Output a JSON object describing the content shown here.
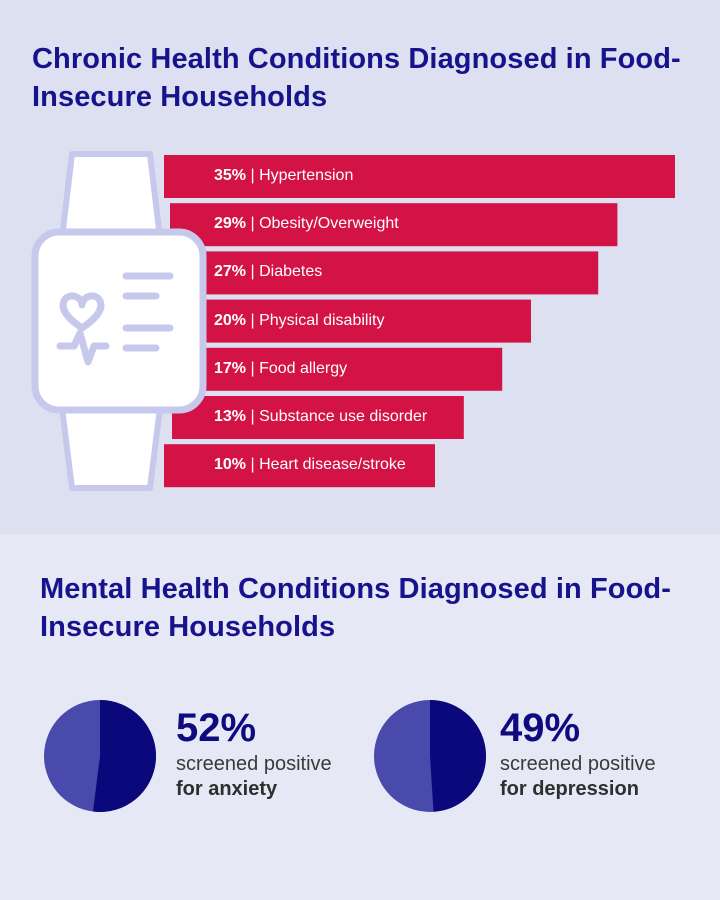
{
  "chronic": {
    "title": "Chronic Health Conditions Diagnosed in Food-Insecure Households"
  },
  "mental": {
    "title": "Mental Health Conditions Diagnosed in Food-Insecure Households"
  },
  "colors": {
    "bar": "#d31245",
    "title": "#17138c",
    "pie_dark": "#0b087c",
    "pie_light": "#4a4aad",
    "watch_outline": "#c6c9ec"
  },
  "chart_data": [
    {
      "type": "bar",
      "orientation": "horizontal",
      "title": "Chronic Health Conditions Diagnosed in Food-Insecure Households",
      "categories": [
        "Hypertension",
        "Obesity/Overweight",
        "Diabetes",
        "Physical disability",
        "Food allergy",
        "Substance use disorder",
        "Heart disease/stroke"
      ],
      "values": [
        35,
        29,
        27,
        20,
        17,
        13,
        10
      ],
      "labels": [
        {
          "pct": "35%",
          "text": " | Hypertension"
        },
        {
          "pct": "29%",
          "text": " | Obesity/Overweight"
        },
        {
          "pct": "27%",
          "text": " | Diabetes"
        },
        {
          "pct": "20%",
          "text": " | Physical disability"
        },
        {
          "pct": "17%",
          "text": " | Food allergy"
        },
        {
          "pct": "13%",
          "text": " | Substance use disorder"
        },
        {
          "pct": "10%",
          "text": " | Heart disease/stroke"
        }
      ],
      "unit": "%",
      "icon": "smartwatch-health-icon"
    },
    {
      "type": "pie",
      "title": "Mental Health Conditions Diagnosed in Food-Insecure Households",
      "items": [
        {
          "value": 52,
          "big": "52%",
          "line1": "screened positive",
          "line2": "for anxiety"
        },
        {
          "value": 49,
          "big": "49%",
          "line1": "screened positive",
          "line2": "for depression"
        }
      ]
    }
  ]
}
